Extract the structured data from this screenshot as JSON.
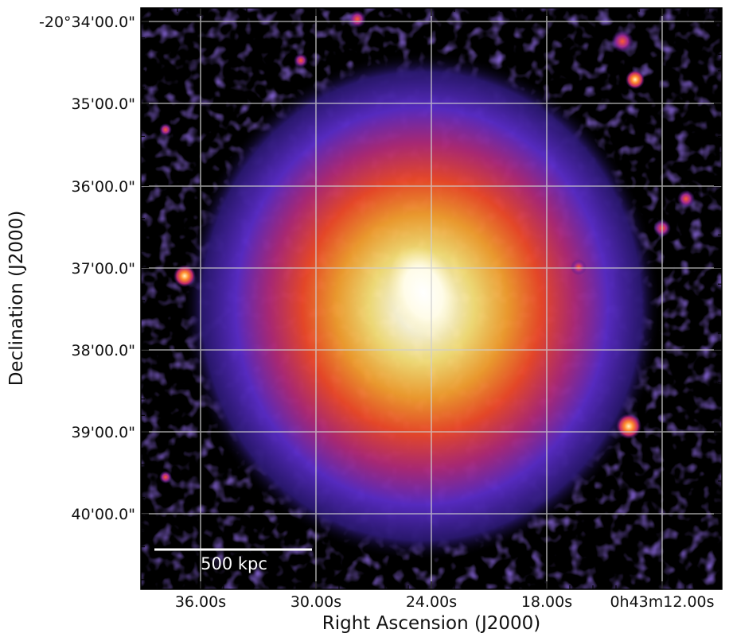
{
  "image": {
    "description_colormap": "black-purple-red-yellow-white (heat)",
    "background_color": "#000000",
    "grid_color": "#cfcfcf"
  },
  "axes": {
    "xlabel": "Right Ascension (J2000)",
    "ylabel": "Declination (J2000)",
    "x_ticks": [
      "36.00s",
      "30.00s",
      "24.00s",
      "18.00s",
      "0h43m12.00s"
    ],
    "y_ticks": [
      "-20°34'00.0\"",
      "35'00.0\"",
      "36'00.0\"",
      "37'00.0\"",
      "38'00.0\"",
      "39'00.0\"",
      "40'00.0\""
    ]
  },
  "scalebar": {
    "label": "500 kpc",
    "color": "#ffffff"
  }
}
